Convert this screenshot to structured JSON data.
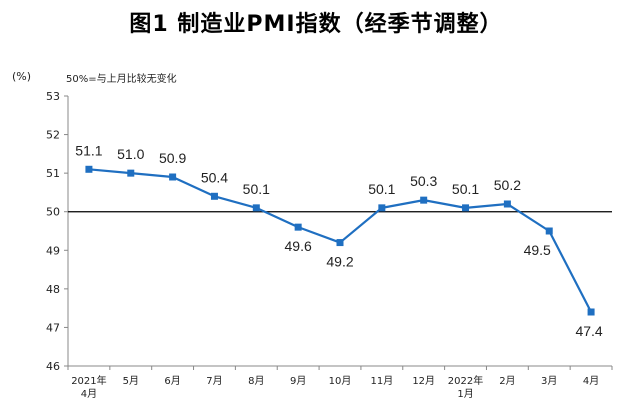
{
  "chart_data": {
    "type": "line",
    "title": "图1  制造业PMI指数（经季节调整）",
    "unit_label": "(%)",
    "annotation": "50%=与上月比较无变化",
    "categories": [
      [
        "2021年",
        "4月"
      ],
      [
        "5月"
      ],
      [
        "6月"
      ],
      [
        "7月"
      ],
      [
        "8月"
      ],
      [
        "9月"
      ],
      [
        "10月"
      ],
      [
        "11月"
      ],
      [
        "12月"
      ],
      [
        "2022年",
        "1月"
      ],
      [
        "2月"
      ],
      [
        "3月"
      ],
      [
        "4月"
      ]
    ],
    "series": [
      {
        "values": [
          51.1,
          51.0,
          50.9,
          50.4,
          50.1,
          49.6,
          49.2,
          50.1,
          50.3,
          50.1,
          50.2,
          49.5,
          47.4
        ]
      }
    ],
    "data_labels": [
      "51.1",
      "51.0",
      "50.9",
      "50.4",
      "50.1",
      "49.6",
      "49.2",
      "50.1",
      "50.3",
      "50.1",
      "50.2",
      "49.5",
      "47.4"
    ],
    "ylim": [
      46,
      53
    ],
    "yticks": [
      46,
      47,
      48,
      49,
      50,
      51,
      52,
      53
    ],
    "reference_line": 50,
    "line_color": "#1f6fc1",
    "marker_color": "#1f6fc1",
    "reference_color": "#000000",
    "grid": false,
    "legend": "none"
  }
}
